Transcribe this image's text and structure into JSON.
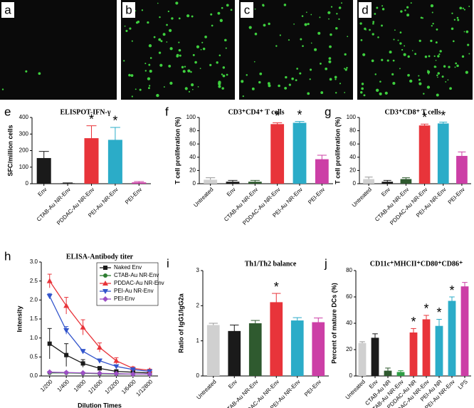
{
  "image_labels": [
    "a",
    "b",
    "c",
    "d"
  ],
  "chart_data": [
    {
      "type": "bar",
      "label": "e",
      "title": "ELISPOT-IFN-γ",
      "ylabel": "SFC/million cells",
      "categories": [
        "Env",
        "CTAB-Au NR-Env",
        "PDDAC-Au NR-Env",
        "PEI-Au NR-Env",
        "PEI-Env"
      ],
      "values": [
        155,
        3,
        275,
        265,
        8
      ],
      "errors": [
        40,
        2,
        75,
        75,
        5
      ],
      "colors": [
        "#1a1a1a",
        "#1a1a1a",
        "#e8343a",
        "#2bacc8",
        "#cc3fa6"
      ],
      "value_annotations": [
        null,
        null,
        "*",
        "*",
        null
      ],
      "ylim": [
        0,
        400
      ],
      "yticks": [
        0,
        100,
        200,
        300,
        400
      ]
    },
    {
      "type": "bar",
      "label": "f",
      "title": "CD3⁺CD4⁺ T cells",
      "ylabel": "T cell proliferation (%)",
      "categories": [
        "Untreated",
        "Env",
        "CTAB-Au NR-Env",
        "PDDAC-Au NR-Env",
        "PEI-Au NR-Env",
        "PEI-Env"
      ],
      "values": [
        6,
        3,
        3,
        90,
        92,
        37
      ],
      "errors": [
        3,
        2,
        2,
        2,
        2,
        6
      ],
      "colors": [
        "#d0d0d0",
        "#1a1a1a",
        "#2f5a2f",
        "#e8343a",
        "#2bacc8",
        "#cc3fa6"
      ],
      "value_annotations": [
        null,
        null,
        null,
        "*",
        "*",
        null
      ],
      "ylim": [
        0,
        100
      ],
      "yticks": [
        0,
        20,
        40,
        60,
        80,
        100
      ]
    },
    {
      "type": "bar",
      "label": "g",
      "title": "CD3⁺CD8⁺ T cells",
      "ylabel": "T cell proliferation (%)",
      "categories": [
        "Untreated",
        "Env",
        "CTAB-Au NR-Env",
        "PDDAC-Au NR-Env",
        "PEI-Au NR-Env",
        "PEI-Env"
      ],
      "values": [
        7,
        3,
        7,
        88,
        91,
        42
      ],
      "errors": [
        3,
        2,
        2,
        2,
        2,
        6
      ],
      "colors": [
        "#d0d0d0",
        "#1a1a1a",
        "#2f5a2f",
        "#e8343a",
        "#2bacc8",
        "#cc3fa6"
      ],
      "value_annotations": [
        null,
        null,
        null,
        "*",
        "*",
        null
      ],
      "ylim": [
        0,
        100
      ],
      "yticks": [
        0,
        20,
        40,
        60,
        80,
        100
      ]
    },
    {
      "type": "line",
      "label": "h",
      "title": "ELISA-Antibody titer",
      "xlabel": "Dilution Times",
      "ylabel": "Intensity",
      "categories": [
        "1/200",
        "1/400",
        "1/800",
        "1/1600",
        "1/3200",
        "1/6400",
        "1/12800"
      ],
      "series": [
        {
          "name": "Naked Env",
          "color": "#1a1a1a",
          "marker": "square",
          "values": [
            0.85,
            0.55,
            0.33,
            0.2,
            0.12,
            0.1,
            0.08
          ],
          "errors": [
            0.4,
            0.3,
            0.1,
            0.05,
            0.03,
            0.02,
            0.02
          ]
        },
        {
          "name": "CTAB-Au NR-Env",
          "color": "#2e7d32",
          "marker": "circle",
          "values": [
            0.08,
            0.08,
            0.07,
            0.06,
            0.05,
            0.05,
            0.05
          ],
          "errors": [
            0.02,
            0.02,
            0.02,
            0.01,
            0.01,
            0.01,
            0.01
          ]
        },
        {
          "name": "PDDAC-Au NR-Env",
          "color": "#e8343a",
          "marker": "triangle",
          "values": [
            2.5,
            1.85,
            1.28,
            0.75,
            0.4,
            0.2,
            0.15
          ],
          "errors": [
            0.18,
            0.22,
            0.2,
            0.12,
            0.08,
            0.04,
            0.03
          ]
        },
        {
          "name": "PEI-Au NR-Env",
          "color": "#3355cc",
          "marker": "triangle-down",
          "values": [
            2.1,
            1.2,
            0.65,
            0.4,
            0.25,
            0.17,
            0.12
          ],
          "errors": [
            0.07,
            0.1,
            0.05,
            0.05,
            0.04,
            0.03,
            0.02
          ]
        },
        {
          "name": "PEI-Env",
          "color": "#9c4fc4",
          "marker": "diamond",
          "values": [
            0.1,
            0.09,
            0.08,
            0.07,
            0.06,
            0.05,
            0.05
          ],
          "errors": [
            0.02,
            0.02,
            0.02,
            0.01,
            0.01,
            0.01,
            0.01
          ]
        }
      ],
      "legend": "upper right",
      "ylim": [
        0,
        3
      ],
      "yticks": [
        {
          "value": 0,
          "label": "0.0"
        },
        {
          "value": 0.5,
          "label": "0.5"
        },
        {
          "value": 1,
          "label": "1.0"
        },
        {
          "value": 1.5,
          "label": "1.5"
        },
        {
          "value": 2,
          "label": "2.0"
        },
        {
          "value": 2.5,
          "label": "2.5"
        },
        {
          "value": 3,
          "label": "3.0"
        }
      ]
    },
    {
      "type": "bar",
      "label": "i",
      "title": "Th1/Th2 balance",
      "ylabel": "Ratio of IgG1/IgG2a",
      "categories": [
        "Untreated",
        "Env",
        "CTAB-Au NR-Env",
        "PDDAC-Au NR-Env",
        "PEI-Au NR-Env",
        "PEI-Env"
      ],
      "values": [
        1.45,
        1.28,
        1.5,
        2.1,
        1.58,
        1.53
      ],
      "errors": [
        0.05,
        0.17,
        0.08,
        0.25,
        0.08,
        0.12
      ],
      "colors": [
        "#d0d0d0",
        "#1a1a1a",
        "#2f5a2f",
        "#e8343a",
        "#2bacc8",
        "#cc3fa6"
      ],
      "value_annotations": [
        null,
        null,
        null,
        "*",
        null,
        null
      ],
      "ylim": [
        0,
        3
      ],
      "yticks": [
        0,
        1,
        2,
        3
      ]
    },
    {
      "type": "bar",
      "label": "j",
      "title": "CD11c⁺MHCII⁺CD80⁺CD86⁺",
      "ylabel": "Percent of mature DCs (%)",
      "categories": [
        "Untreated",
        "Env",
        "CTAB-Au NR",
        "CTAB-Au NR-Env",
        "PDDAC-Au NR",
        "PDDAC-Au NR-Env",
        "PEI-Au NR",
        "PEI-Au NR-Env",
        "LPS"
      ],
      "values": [
        25,
        29,
        4,
        3,
        33,
        43,
        38,
        57,
        68
      ],
      "errors": [
        1,
        3,
        2,
        1,
        3,
        3,
        5,
        3,
        3
      ],
      "colors": [
        "#d0d0d0",
        "#1a1a1a",
        "#2f5a2f",
        "#2e9e45",
        "#e8343a",
        "#e8343a",
        "#2bacc8",
        "#2bacc8",
        "#cc3fa6"
      ],
      "value_annotations": [
        null,
        null,
        null,
        null,
        "*",
        "*",
        "*",
        "*",
        null
      ],
      "ylim": [
        0,
        80
      ],
      "yticks": [
        0,
        20,
        40,
        60,
        80
      ]
    }
  ]
}
